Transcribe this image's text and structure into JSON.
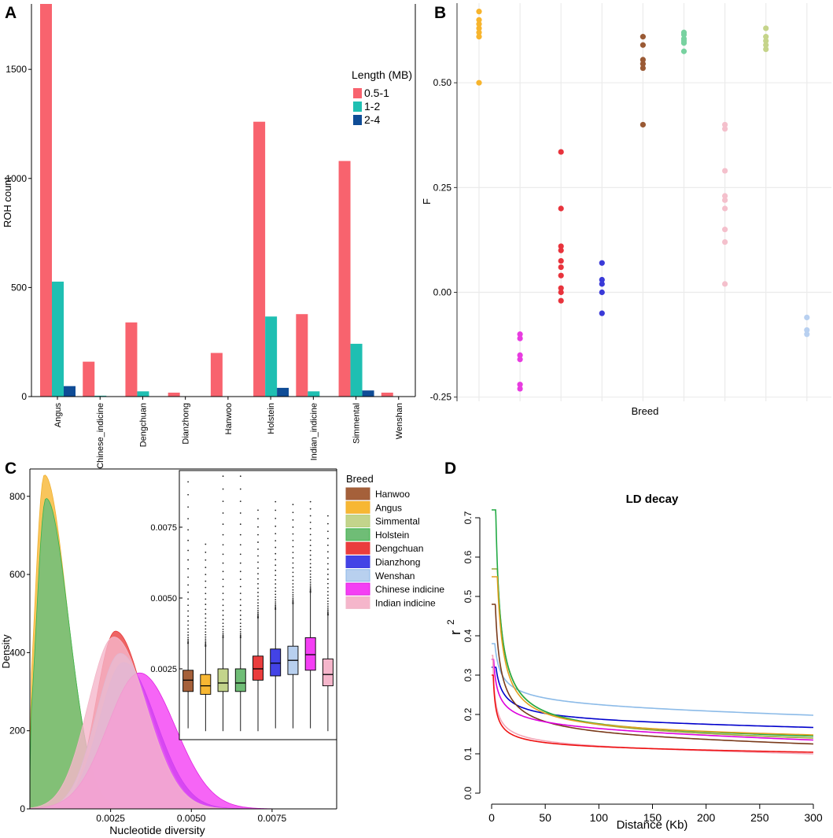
{
  "chart_data": [
    {
      "panel": "A",
      "type": "bar",
      "ylabel": "ROH count",
      "ylim": [
        0,
        1800
      ],
      "yticks": [
        0,
        500,
        1000,
        1500
      ],
      "categories": [
        "Angus",
        "Chinese_indicine",
        "Dengchuan",
        "Dianzhong",
        "Hanwoo",
        "Holstein",
        "Indian_indicine",
        "Simmental",
        "Wenshan"
      ],
      "legend_title": "Length (MB)",
      "series": [
        {
          "name": "0.5-1",
          "color": "#f8636e",
          "values": [
            1800,
            160,
            340,
            18,
            200,
            1260,
            378,
            1080,
            18
          ]
        },
        {
          "name": "1-2",
          "color": "#1fbfb2",
          "values": [
            527,
            4,
            24,
            0,
            0,
            367,
            24,
            242,
            0
          ]
        },
        {
          "name": "2-4",
          "color": "#0f4c96",
          "values": [
            48,
            0,
            0,
            0,
            0,
            40,
            0,
            28,
            0
          ]
        }
      ]
    },
    {
      "panel": "B",
      "type": "scatter",
      "xlabel": "Breed",
      "ylabel": "F",
      "ylim": [
        -0.26,
        0.69
      ],
      "yticks": [
        -0.25,
        0.0,
        0.25,
        0.5
      ],
      "yticklabels": [
        "-0.25",
        "0.00",
        "0.25",
        "0.50"
      ],
      "groups": [
        {
          "color": "#f7b42c",
          "values": [
            0.67,
            0.65,
            0.64,
            0.63,
            0.62,
            0.61,
            0.5
          ]
        },
        {
          "color": "#e83ce0",
          "values": [
            -0.1,
            -0.11,
            -0.15,
            -0.16,
            -0.22,
            -0.23
          ]
        },
        {
          "color": "#e8333c",
          "values": [
            0.335,
            0.2,
            0.11,
            0.1,
            0.075,
            0.06,
            0.04,
            0.01,
            0.0,
            -0.02
          ]
        },
        {
          "color": "#3a3ad8",
          "values": [
            0.07,
            0.03,
            0.02,
            0.0,
            -0.05
          ]
        },
        {
          "color": "#9a5a35",
          "values": [
            0.61,
            0.59,
            0.555,
            0.545,
            0.535,
            0.4
          ]
        },
        {
          "color": "#78d2a0",
          "values": [
            0.62,
            0.615,
            0.605,
            0.6,
            0.595,
            0.575
          ]
        },
        {
          "color": "#f4c0cc",
          "values": [
            0.4,
            0.39,
            0.29,
            0.23,
            0.22,
            0.2,
            0.15,
            0.12,
            0.02
          ]
        },
        {
          "color": "#c5d48a",
          "values": [
            0.63,
            0.61,
            0.6,
            0.59,
            0.58
          ]
        },
        {
          "color": "#b8d0f0",
          "values": [
            -0.06,
            -0.09,
            -0.1
          ]
        }
      ]
    },
    {
      "panel": "C",
      "type": "area",
      "xlabel": "Nucleotide diversity",
      "ylabel": "Density",
      "xlim": [
        0,
        0.0095
      ],
      "ylim": [
        0,
        870
      ],
      "xticks": [
        0.0025,
        0.005,
        0.0075
      ],
      "xticklabels": [
        "0.0025",
        "0.0050",
        "0.0075"
      ],
      "yticks": [
        0,
        200,
        400,
        600,
        800
      ],
      "legend_title": "Breed",
      "series": [
        {
          "name": "Hanwoo",
          "color": "#9c5b38",
          "fill": "#a5603a",
          "mode": 0.0005,
          "peak": 790,
          "sl": 0.0003,
          "sr": 0.0007
        },
        {
          "name": "Angus",
          "color": "#f0b030",
          "fill": "#f7b733",
          "mode": 0.00045,
          "peak": 855,
          "sl": 0.0003,
          "sr": 0.0007
        },
        {
          "name": "Simmental",
          "color": "#b5cd78",
          "fill": "#c3d48b",
          "mode": 0.0005,
          "peak": 795,
          "sl": 0.0003,
          "sr": 0.0007
        },
        {
          "name": "Holstein",
          "color": "#3cb44b",
          "fill": "#6fbd76",
          "mode": 0.0005,
          "peak": 795,
          "sl": 0.0003,
          "sr": 0.0007
        },
        {
          "name": "Dengchuan",
          "color": "#e83a3a",
          "fill": "#ea3d3d",
          "mode": 0.00265,
          "peak": 455,
          "sl": 0.0006,
          "sr": 0.0009
        },
        {
          "name": "Dianzhong",
          "color": "#3c3ce0",
          "fill": "#4343e6",
          "mode": 0.0029,
          "peak": 375,
          "sl": 0.00075,
          "sr": 0.001
        },
        {
          "name": "Wenshan",
          "color": "#8cb8e8",
          "fill": "#b8d0ef",
          "mode": 0.0028,
          "peak": 398,
          "sl": 0.00075,
          "sr": 0.00095
        },
        {
          "name": "Chinese indicine",
          "color": "#e020e0",
          "fill": "#f43ff4",
          "mode": 0.0034,
          "peak": 348,
          "sl": 0.001,
          "sr": 0.0011
        },
        {
          "name": "Indian indicine",
          "color": "#f1b8c8",
          "fill": "#f5b6cb",
          "mode": 0.0026,
          "peak": 440,
          "sl": 0.0008,
          "sr": 0.001
        }
      ],
      "inset": {
        "type": "box",
        "ylim": [
          0.0,
          0.0095
        ],
        "yticks": [
          0.0025,
          0.005,
          0.0075
        ],
        "yticklabels": [
          "0.0025",
          "0.0050",
          "0.0075"
        ],
        "boxes": [
          {
            "name": "Hanwoo",
            "q1": 0.0017,
            "median": 0.0021,
            "q3": 0.00245,
            "lo": 0.0004,
            "hi": 0.0034,
            "max": 0.0091
          },
          {
            "name": "Angus",
            "q1": 0.0016,
            "median": 0.0019,
            "q3": 0.0023,
            "lo": 0.0003,
            "hi": 0.0033,
            "max": 0.0069
          },
          {
            "name": "Simmental",
            "q1": 0.0017,
            "median": 0.002,
            "q3": 0.0025,
            "lo": 0.0003,
            "hi": 0.0036,
            "max": 0.0093
          },
          {
            "name": "Holstein",
            "q1": 0.0017,
            "median": 0.002,
            "q3": 0.0025,
            "lo": 0.0003,
            "hi": 0.0036,
            "max": 0.0093
          },
          {
            "name": "Dengchuan",
            "q1": 0.0021,
            "median": 0.0025,
            "q3": 0.00295,
            "lo": 0.0003,
            "hi": 0.0043,
            "max": 0.0081
          },
          {
            "name": "Dianzhong",
            "q1": 0.00225,
            "median": 0.0027,
            "q3": 0.0032,
            "lo": 0.0004,
            "hi": 0.0046,
            "max": 0.0084
          },
          {
            "name": "Wenshan",
            "q1": 0.0023,
            "median": 0.0028,
            "q3": 0.0033,
            "lo": 0.0004,
            "hi": 0.0048,
            "max": 0.0083
          },
          {
            "name": "Chinese indicine",
            "q1": 0.00245,
            "median": 0.003,
            "q3": 0.0036,
            "lo": 0.0004,
            "hi": 0.0052,
            "max": 0.0084
          },
          {
            "name": "Indian indicine",
            "q1": 0.0019,
            "median": 0.0023,
            "q3": 0.00285,
            "lo": 0.0003,
            "hi": 0.0044,
            "max": 0.0079
          }
        ]
      }
    },
    {
      "panel": "D",
      "type": "line",
      "title": "LD decay",
      "xlabel": "Distance (Kb)",
      "ylabel": "r",
      "ylabel_sup": "2",
      "xlim": [
        0,
        300
      ],
      "ylim": [
        0,
        0.7
      ],
      "xticks": [
        0,
        50,
        100,
        150,
        200,
        250,
        300
      ],
      "yticks": [
        0.0,
        0.1,
        0.2,
        0.3,
        0.4,
        0.5,
        0.6,
        0.7
      ],
      "yticklabels": [
        "0.0",
        "0.1",
        "0.2",
        "0.3",
        "0.4",
        "0.5",
        "0.6",
        "0.7"
      ],
      "series": [
        {
          "name": "Wenshan",
          "color": "#8cbbe8",
          "start": 0.38,
          "at10": 0.3,
          "at50": 0.245,
          "end": 0.198
        },
        {
          "name": "Dianzhong",
          "color": "#0000cc",
          "start": 0.32,
          "at10": 0.26,
          "at50": 0.205,
          "end": 0.167
        },
        {
          "name": "Simmental",
          "color": "#9aaa3a",
          "start": 0.57,
          "at10": 0.4,
          "at50": 0.21,
          "end": 0.14
        },
        {
          "name": "Holstein",
          "color": "#22aa44",
          "start": 0.72,
          "at10": 0.4,
          "at50": 0.21,
          "end": 0.145
        },
        {
          "name": "Angus",
          "color": "#e2a020",
          "start": 0.55,
          "at10": 0.38,
          "at50": 0.205,
          "end": 0.148
        },
        {
          "name": "Hanwoo",
          "color": "#7a3a1a",
          "start": 0.48,
          "at10": 0.3,
          "at50": 0.185,
          "end": 0.125
        },
        {
          "name": "Chinese indicine",
          "color": "#dd00dd",
          "start": 0.34,
          "at10": 0.235,
          "at50": 0.185,
          "end": 0.135
        },
        {
          "name": "Indian indicine",
          "color": "#f4a6b8",
          "start": 0.35,
          "at10": 0.18,
          "at50": 0.135,
          "end": 0.1
        },
        {
          "name": "Dengchuan",
          "color": "#ee1111",
          "start": 0.3,
          "at10": 0.17,
          "at50": 0.13,
          "end": 0.104
        }
      ]
    }
  ]
}
